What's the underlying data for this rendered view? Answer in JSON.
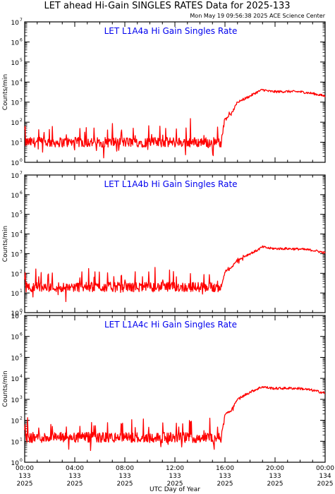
{
  "title": "LET ahead Hi-Gain SINGLES RATES Data for 2025-133",
  "timestamp": "Mon May 19 09:56:38 2025 ACE Science Center",
  "colors": {
    "line": "#ff0000",
    "panel_title": "#0000ee",
    "axes": "#000000"
  },
  "chart_data": [
    {
      "type": "line",
      "title": "LET L1A4a Hi Gain Singles Rate",
      "xlabel": "",
      "ylabel": "Counts/min",
      "yscale": "log",
      "ylim": [
        1,
        10000000
      ],
      "xlim_hours": [
        0,
        24
      ],
      "yticks": [
        1,
        10,
        100,
        1000,
        10000,
        100000,
        1000000,
        10000000
      ],
      "series": [
        {
          "x": [
            0,
            1,
            2,
            3,
            4,
            5,
            6,
            7,
            8,
            9,
            10,
            11,
            12,
            13,
            14,
            15,
            15.7,
            16,
            16.5,
            17,
            17.5,
            18,
            18.5,
            19,
            19.5,
            20,
            21,
            22,
            23,
            24
          ],
          "y": [
            10,
            10,
            10,
            10,
            10,
            10,
            10,
            10,
            10,
            10,
            10,
            10,
            10,
            10,
            10,
            10,
            10,
            150,
            250,
            1000,
            1400,
            2000,
            3000,
            4200,
            3500,
            3300,
            3400,
            3300,
            2700,
            2000
          ]
        }
      ]
    },
    {
      "type": "line",
      "title": "LET L1A4b Hi Gain Singles Rate",
      "xlabel": "",
      "ylabel": "Counts/min",
      "yscale": "log",
      "ylim": [
        1,
        10000000
      ],
      "xlim_hours": [
        0,
        24
      ],
      "yticks": [
        1,
        10,
        100,
        1000,
        10000,
        100000,
        1000000,
        10000000
      ],
      "series": [
        {
          "x": [
            0,
            1,
            2,
            3,
            4,
            5,
            6,
            7,
            8,
            9,
            10,
            11,
            12,
            13,
            14,
            15,
            15.7,
            16,
            16.5,
            17,
            17.5,
            18,
            18.5,
            19,
            19.5,
            20,
            21,
            22,
            23,
            24
          ],
          "y": [
            20,
            20,
            20,
            20,
            20,
            20,
            20,
            20,
            20,
            20,
            20,
            20,
            20,
            20,
            20,
            20,
            20,
            120,
            180,
            500,
            700,
            1000,
            1400,
            2200,
            1900,
            1800,
            1800,
            1700,
            1500,
            1100
          ]
        }
      ]
    },
    {
      "type": "line",
      "title": "LET L1A4c Hi Gain Singles Rate",
      "xlabel": "UTC Day of Year",
      "ylabel": "Counts/min",
      "yscale": "log",
      "ylim": [
        1,
        10000000
      ],
      "xlim_hours": [
        0,
        24
      ],
      "yticks": [
        1,
        10,
        100,
        1000,
        10000,
        100000,
        1000000,
        10000000
      ],
      "series": [
        {
          "x": [
            0,
            1,
            2,
            3,
            4,
            5,
            6,
            7,
            8,
            9,
            10,
            11,
            12,
            13,
            14,
            15,
            15.7,
            16,
            16.5,
            17,
            17.5,
            18,
            18.5,
            19,
            19.5,
            20,
            21,
            22,
            23,
            24
          ],
          "y": [
            15,
            15,
            15,
            15,
            15,
            15,
            15,
            15,
            15,
            15,
            15,
            15,
            15,
            15,
            15,
            15,
            15,
            200,
            300,
            1000,
            1500,
            2200,
            3000,
            4000,
            3500,
            3300,
            3400,
            3300,
            2700,
            2000
          ]
        }
      ],
      "x_tick_labels": [
        [
          "00:00",
          "133",
          "2025"
        ],
        [
          "04:00",
          "133",
          "2025"
        ],
        [
          "08:00",
          "133",
          "2025"
        ],
        [
          "12:00",
          "133",
          "2025"
        ],
        [
          "16:00",
          "133",
          "2025"
        ],
        [
          "20:00",
          "133",
          "2025"
        ],
        [
          "00:00",
          "134",
          "2025"
        ]
      ]
    }
  ]
}
